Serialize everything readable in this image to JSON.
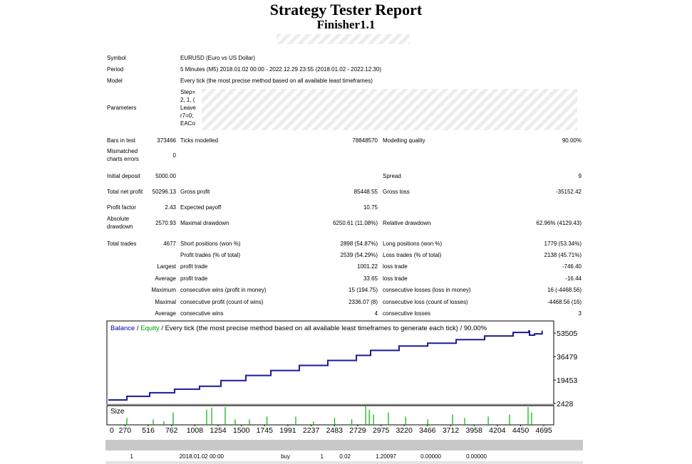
{
  "header": {
    "title": "Strategy Tester Report",
    "subtitle": "Finisher1.1"
  },
  "info": [
    {
      "label": "Symbol",
      "value": "EURUSD (Euro vs US Dollar)"
    },
    {
      "label": "Period",
      "value": "5 Minutes (M5) 2018.01.02 00:00 - 2022.12.29 23:55 (2018.01.02 - 2022.12.30)"
    },
    {
      "label": "Model",
      "value": "Every tick (the most precise method based on all available least timeframes)"
    }
  ],
  "parameters": {
    "label": "Parameters",
    "lines": [
      "Step=",
      "2, 1, (",
      "Leave",
      "r7=0;",
      "EACo"
    ]
  },
  "stats": [
    [
      "Bars in test",
      "373466",
      "Ticks modelled",
      "78848570",
      "Modelling quality",
      "90.00%"
    ],
    [
      "Mismatched charts errors",
      "0",
      null,
      null,
      null,
      null
    ],
    [
      "Initial deposit",
      "5000.00",
      null,
      null,
      "Spread",
      "9"
    ],
    [
      "Total net profit",
      "50296.13",
      "Gross profit",
      "85448.55",
      "Gross loss",
      "-35152.42"
    ],
    [
      "Profit factor",
      "2.43",
      "Expected payoff",
      "10.75",
      null,
      null
    ],
    [
      "Absolute drawdown",
      "2570.93",
      "Maximal drawdown",
      "6250.61 (11.08%)",
      "Relative drawdown",
      "62.96% (4129.43)"
    ],
    [
      "Total trades",
      "4677",
      "Short positions (won %)",
      "2898 (54.87%)",
      "Long positions (won %)",
      "1779 (53.34%)"
    ],
    [
      null,
      null,
      "Profit trades (% of total)",
      "2539 (54.29%)",
      "Loss trades (% of total)",
      "2138 (45.71%)"
    ],
    [
      null,
      "Largest",
      "profit trade",
      "1001.22",
      "loss trade",
      "-746.40"
    ],
    [
      null,
      "Average",
      "profit trade",
      "33.65",
      "loss trade",
      "-16.44"
    ],
    [
      null,
      "Maximum",
      "consecutive wins (profit in money)",
      "15 (194.75)",
      "consecutive losses (loss in money)",
      "16 (-4468.56)"
    ],
    [
      null,
      "Maximal",
      "consecutive profit (count of wins)",
      "2336.07 (8)",
      "consecutive loss (count of losses)",
      "-4468.56 (16)"
    ],
    [
      null,
      "Average",
      "consecutive wins",
      "4",
      "consecutive losses",
      "3"
    ]
  ],
  "chart": {
    "legend": [
      {
        "name": "Balance",
        "color": "#0000b0"
      },
      {
        "name": "Equity",
        "color": "#00a000"
      }
    ],
    "separator": "/",
    "description": "Every tick (the most precise method based on all available least timeframes to generate each tick)",
    "quality": "90.00%",
    "size_label": "Size",
    "xlim": [
      79,
      4800
    ],
    "xticks": [
      0,
      270,
      516,
      762,
      1008,
      1254,
      1500,
      1745,
      1991,
      2237,
      2483,
      2729,
      2975,
      3220,
      3466,
      3712,
      3958,
      4204,
      4450,
      4695
    ],
    "ylim": [
      1907,
      62366
    ],
    "yticks": [
      2428,
      19453,
      36479,
      53505
    ],
    "balance": {
      "color": "#1a1a9a",
      "x": [
        94,
        290,
        531,
        794,
        1058,
        1284,
        1547,
        1811,
        2112,
        2413,
        2715,
        2865,
        3166,
        3468,
        3769,
        4070,
        4371,
        4537,
        4544,
        4597,
        4677
      ],
      "values": [
        5000,
        7640,
        10250,
        12850,
        14940,
        19100,
        22750,
        26400,
        30050,
        33700,
        37350,
        41000,
        44120,
        46210,
        48810,
        51420,
        54030,
        55070,
        52000,
        53000,
        55296
      ]
    },
    "sizes": {
      "color": "#00b000",
      "ylim": [
        0,
        0.28
      ],
      "x": [
        290,
        569,
        681,
        779,
        1133,
        1186,
        1329,
        1434,
        1585,
        1770,
        2074,
        2262,
        2485,
        2666,
        2813,
        2851,
        2896,
        3053,
        3235,
        3468,
        3731,
        3859,
        4108,
        4333,
        4529,
        4566
      ],
      "values": [
        0.1,
        0.08,
        0.05,
        0.18,
        0.22,
        0.25,
        0.26,
        0.08,
        0.08,
        0.12,
        0.12,
        0.05,
        0.1,
        0.08,
        0.27,
        0.22,
        0.15,
        0.18,
        0.12,
        0.08,
        0.15,
        0.1,
        0.12,
        0.15,
        0.26,
        0.18
      ]
    }
  },
  "trades": {
    "columns": [
      "#",
      "Time",
      "Type",
      "Order",
      "Size",
      "Price",
      "S / L",
      "T / P",
      "Profit",
      "Balance"
    ],
    "rows": [
      [
        "1",
        "2018.01.02 00:00",
        "buy",
        "1",
        "0.02",
        "1.20097",
        "0.00000",
        "0.00000",
        null,
        null
      ]
    ]
  }
}
